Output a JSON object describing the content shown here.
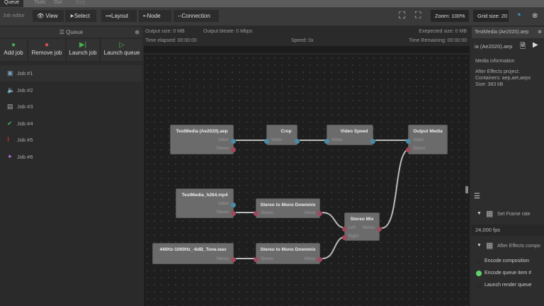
{
  "top_tabs": [
    "Queue",
    "Tools",
    "Out",
    "Stop"
  ],
  "toolbar": {
    "label": "Job editor",
    "view": "View",
    "select": "Select",
    "layout": "Layout",
    "node": "Node",
    "connection": "Connection",
    "zoom": "Zoom: 100%",
    "grid": "Grid size: 20"
  },
  "queue": {
    "title": "Queue",
    "buttons": [
      "Add job",
      "Remove job",
      "Launch job",
      "Launch queue"
    ],
    "jobs": [
      {
        "label": "Job #1",
        "icon": "video-icon"
      },
      {
        "label": "Job #2",
        "icon": "audio-icon"
      },
      {
        "label": "Job #3",
        "icon": "film-icon"
      },
      {
        "label": "Job #4",
        "icon": "check-icon"
      },
      {
        "label": "Job #5",
        "icon": "error-icon"
      },
      {
        "label": "Job #6",
        "icon": "magic-wand-icon"
      }
    ]
  },
  "status": {
    "output_size": "Output size:  0 MB",
    "output_bitrate": "Output bitrate:  0 Mbps",
    "expected_size": "Exepected size:  0 MB",
    "time_elapsed": "Time elapsed:   00:00:00",
    "speed": "Speed:  0x",
    "time_remaining": "Time Remaining:  00:00:00"
  },
  "nodes": {
    "n1": {
      "title": "TestMedia (Ae2020).aep",
      "ports": [
        "Video",
        "Stereo"
      ]
    },
    "crop": {
      "title": "Crop",
      "ports": [
        "Video"
      ]
    },
    "speed": {
      "title": "Video Speed",
      "ports": [
        "Video"
      ]
    },
    "output": {
      "title": "Output Media",
      "ports": [
        "Video",
        "Stereo"
      ]
    },
    "n2": {
      "title": "TestMedia_h264.mp4",
      "ports": [
        "Video",
        "Stereo"
      ]
    },
    "s2m1": {
      "title": "Stereo to Mono Downmix",
      "in": "Stereo",
      "out": "Mono"
    },
    "mix": {
      "title": "Stereo Mix",
      "in": [
        "Left",
        "Right"
      ],
      "out": "Stereo"
    },
    "n3": {
      "title": "440Hz-1000Hz_-6dB_Tone.wav",
      "ports": [
        "Stereo"
      ]
    },
    "s2m2": {
      "title": "Stereo to Mono Downmix",
      "in": "Stereo",
      "out": "Mono"
    }
  },
  "right": {
    "tab": "TestMedia (Ae2020).aep",
    "file": "ia (Ae2020).aep",
    "info_title": "Media information",
    "info": [
      "After Effects project.",
      "Containers: aep,aet,aepx",
      "Size: 383 kB"
    ],
    "frame_rate_title": "Set Frame rate",
    "frame_rate": "24,000 fps",
    "ae_title": "After Effects compo",
    "options": [
      {
        "label": "Encode composition",
        "selected": false
      },
      {
        "label": "Encode queue item #",
        "selected": true
      },
      {
        "label": "Launch render queue",
        "selected": false
      }
    ]
  }
}
